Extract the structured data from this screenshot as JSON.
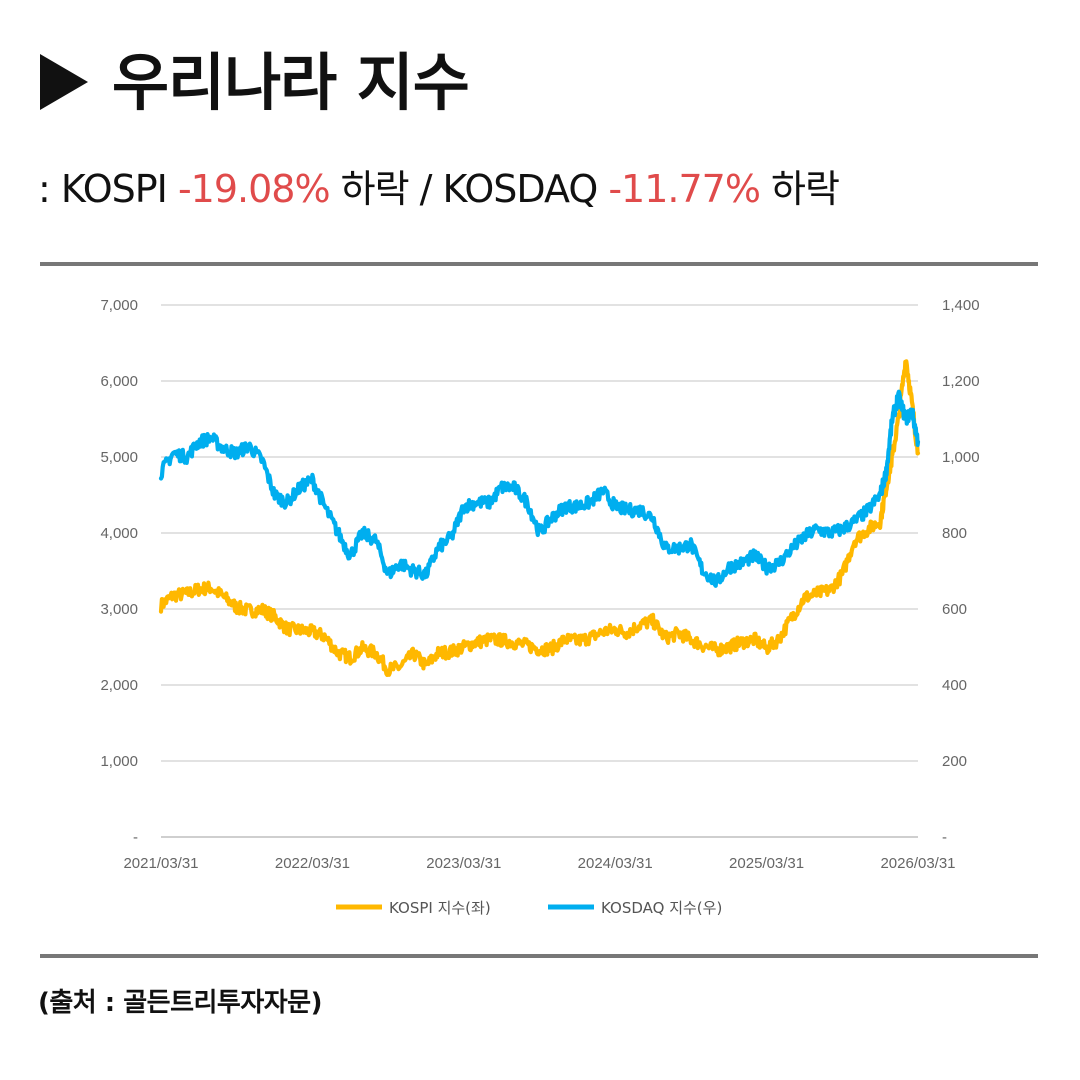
{
  "header": {
    "title": "우리나라 지수"
  },
  "subtitle": {
    "prefix": ": KOSPI ",
    "kospi_change": "-19.08%",
    "mid": " 하락 / KOSDAQ ",
    "kosdaq_change": "-11.77%",
    "suffix": " 하락"
  },
  "source": "(출처 : 골든트리투자자문)",
  "colors": {
    "kospi": "#FFB800",
    "kosdaq": "#00AEEF",
    "negative": "#e04b4b"
  },
  "chart_data": {
    "type": "line",
    "title": "우리나라 지수",
    "x_tick_labels": [
      "2021/03/31",
      "2022/03/31",
      "2023/03/31",
      "2024/03/31",
      "2025/03/31",
      "2026/03/31"
    ],
    "x_range": [
      2021.25,
      2026.25
    ],
    "left_axis": {
      "ylim": [
        0,
        7000
      ],
      "tick_labels": [
        "-",
        "1,000",
        "2,000",
        "3,000",
        "4,000",
        "5,000",
        "6,000",
        "7,000"
      ]
    },
    "right_axis": {
      "ylim": [
        0,
        1400
      ],
      "tick_labels": [
        "-",
        "200",
        "400",
        "600",
        "800",
        "1,000",
        "1,200",
        "1,400"
      ]
    },
    "grid": true,
    "legend_position": "bottom",
    "series": [
      {
        "name": "KOSPI 지수(좌)",
        "axis": "left",
        "x": [
          2021.25,
          2021.33,
          2021.42,
          2021.5,
          2021.58,
          2021.67,
          2021.75,
          2021.83,
          2021.92,
          2022.0,
          2022.08,
          2022.17,
          2022.25,
          2022.33,
          2022.42,
          2022.5,
          2022.58,
          2022.67,
          2022.75,
          2022.83,
          2022.92,
          2023.0,
          2023.08,
          2023.17,
          2023.25,
          2023.33,
          2023.42,
          2023.5,
          2023.58,
          2023.67,
          2023.75,
          2023.83,
          2023.92,
          2024.0,
          2024.08,
          2024.17,
          2024.25,
          2024.33,
          2024.42,
          2024.5,
          2024.58,
          2024.67,
          2024.75,
          2024.83,
          2024.92,
          2025.0,
          2025.08,
          2025.17,
          2025.25,
          2025.33,
          2025.42,
          2025.5,
          2025.58,
          2025.67,
          2025.75,
          2025.83,
          2025.92,
          2026.0,
          2026.04,
          2026.08,
          2026.12,
          2026.17,
          2026.21,
          2026.25
        ],
        "values": [
          3050,
          3180,
          3200,
          3260,
          3280,
          3150,
          3020,
          2980,
          2990,
          2900,
          2740,
          2720,
          2700,
          2640,
          2420,
          2360,
          2480,
          2420,
          2200,
          2240,
          2410,
          2250,
          2420,
          2440,
          2500,
          2560,
          2600,
          2590,
          2560,
          2520,
          2470,
          2480,
          2600,
          2580,
          2620,
          2700,
          2730,
          2690,
          2800,
          2840,
          2620,
          2680,
          2600,
          2520,
          2460,
          2500,
          2560,
          2600,
          2480,
          2600,
          2900,
          3150,
          3200,
          3250,
          3450,
          3900,
          4050,
          4150,
          4600,
          5000,
          5500,
          6300,
          5700,
          5050
        ]
      },
      {
        "name": "KOSDAQ 지수(우)",
        "axis": "right",
        "x": [
          2021.25,
          2021.33,
          2021.42,
          2021.5,
          2021.58,
          2021.67,
          2021.75,
          2021.83,
          2021.92,
          2022.0,
          2022.08,
          2022.17,
          2022.25,
          2022.33,
          2022.42,
          2022.5,
          2022.58,
          2022.67,
          2022.75,
          2022.83,
          2022.92,
          2023.0,
          2023.08,
          2023.17,
          2023.25,
          2023.33,
          2023.42,
          2023.5,
          2023.58,
          2023.67,
          2023.75,
          2023.83,
          2023.92,
          2024.0,
          2024.08,
          2024.17,
          2024.25,
          2024.33,
          2024.42,
          2024.5,
          2024.58,
          2024.67,
          2024.75,
          2024.83,
          2024.92,
          2025.0,
          2025.08,
          2025.17,
          2025.25,
          2025.33,
          2025.42,
          2025.5,
          2025.58,
          2025.67,
          2025.75,
          2025.83,
          2025.92,
          2026.0,
          2026.04,
          2026.08,
          2026.12,
          2026.17,
          2026.21,
          2026.25
        ],
        "values": [
          960,
          1010,
          1000,
          1040,
          1050,
          1020,
          1010,
          1030,
          990,
          900,
          880,
          920,
          940,
          870,
          800,
          740,
          800,
          780,
          690,
          720,
          700,
          690,
          760,
          790,
          870,
          880,
          880,
          920,
          920,
          880,
          800,
          840,
          870,
          870,
          880,
          910,
          870,
          860,
          860,
          840,
          760,
          760,
          770,
          700,
          670,
          710,
          720,
          740,
          710,
          720,
          760,
          790,
          810,
          800,
          810,
          830,
          860,
          900,
          960,
          1100,
          1160,
          1100,
          1120,
          1040
        ]
      }
    ]
  }
}
